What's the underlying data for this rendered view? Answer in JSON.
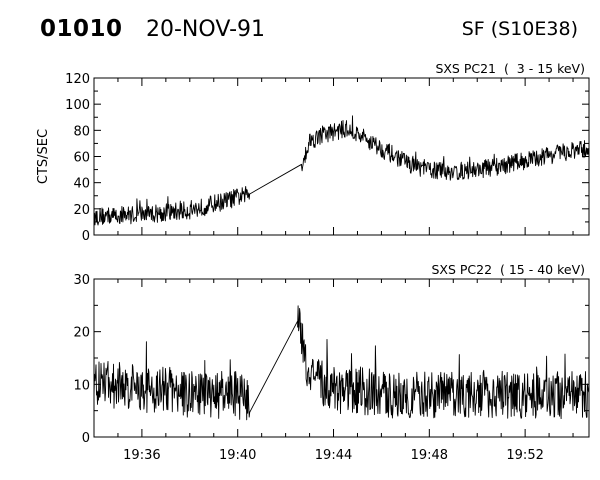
{
  "header": {
    "event_id": "01010",
    "date": "20-NOV-91",
    "location": "SF (S10E38)"
  },
  "chart_data": [
    {
      "type": "line",
      "title": "SXS PC21  (  3 - 15 keV)",
      "ylabel": "CTS/SEC",
      "xlabel": "",
      "y_ticks": [
        "0",
        "20",
        "40",
        "60",
        "80",
        "100",
        "120"
      ],
      "ylim": [
        0,
        120
      ],
      "x_tick_labels": [
        "19:36",
        "19:40",
        "19:44",
        "19:48",
        "19:52"
      ],
      "x_tick_times": [
        "19:36",
        "19:40",
        "19:44",
        "19:48",
        "19:52"
      ],
      "xlim": [
        "19:34:00",
        "19:54:40"
      ],
      "data_gap": [
        "19:40:30",
        "19:42:40"
      ],
      "noise_amplitude": 7,
      "series": [
        {
          "x": [
            "19:34:00",
            "19:35:00",
            "19:36:00",
            "19:37:00",
            "19:38:00",
            "19:38:30",
            "19:39:00",
            "19:39:30",
            "19:40:00",
            "19:40:30",
            "19:42:40",
            "19:43:00",
            "19:43:30",
            "19:44:00",
            "19:44:30",
            "19:45:00",
            "19:45:30",
            "19:46:00",
            "19:46:30",
            "19:47:00",
            "19:47:30",
            "19:48:00",
            "19:48:30",
            "19:49:00",
            "19:50:00",
            "19:51:00",
            "19:52:00",
            "19:53:00",
            "19:54:00",
            "19:54:40"
          ],
          "y": [
            14,
            15,
            16,
            17,
            19,
            21,
            24,
            26,
            29,
            31,
            54,
            72,
            76,
            79,
            81,
            77,
            72,
            66,
            61,
            56,
            52,
            50,
            49,
            48,
            50,
            53,
            57,
            61,
            64,
            66
          ]
        }
      ]
    },
    {
      "type": "line",
      "title": "SXS PC22  ( 15 - 40 keV)",
      "ylabel": "",
      "xlabel": "",
      "y_ticks": [
        "0",
        "10",
        "20",
        "30"
      ],
      "ylim": [
        0,
        30
      ],
      "x_tick_labels": [
        "19:36",
        "19:40",
        "19:44",
        "19:48",
        "19:52"
      ],
      "x_tick_times": [
        "19:36",
        "19:40",
        "19:44",
        "19:48",
        "19:52"
      ],
      "xlim": [
        "19:34:00",
        "19:54:40"
      ],
      "data_gap": [
        "19:40:30",
        "19:42:30"
      ],
      "noise_amplitude": 4.5,
      "series": [
        {
          "x": [
            "19:34:00",
            "19:35:00",
            "19:36:00",
            "19:37:00",
            "19:38:00",
            "19:39:00",
            "19:40:00",
            "19:40:30",
            "19:42:30",
            "19:42:40",
            "19:43:00",
            "19:43:30",
            "19:44:00",
            "19:45:00",
            "19:46:00",
            "19:47:00",
            "19:48:00",
            "19:49:00",
            "19:50:00",
            "19:51:00",
            "19:52:00",
            "19:53:00",
            "19:54:00",
            "19:54:40"
          ],
          "y": [
            10,
            10,
            9,
            9,
            8,
            8,
            8,
            7,
            22,
            18,
            12,
            10,
            9,
            9,
            8,
            8,
            8,
            8,
            8,
            8,
            8,
            8,
            8,
            8
          ]
        }
      ]
    }
  ]
}
